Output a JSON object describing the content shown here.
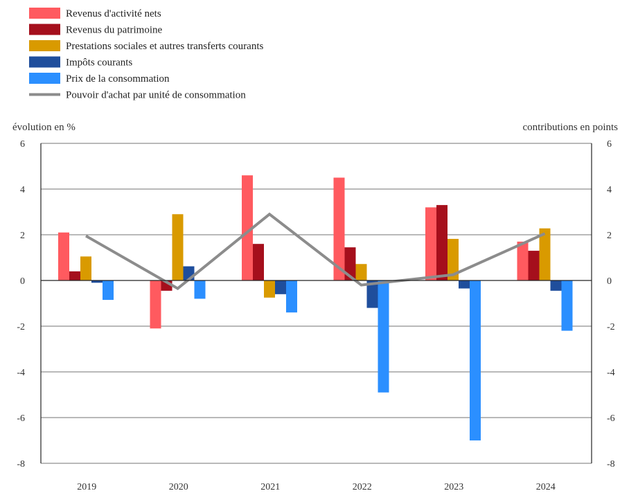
{
  "chart_data": {
    "type": "bar",
    "title": "",
    "ylabel_left": "évolution en %",
    "ylabel_right": "contributions en points",
    "categories": [
      "2019",
      "2020",
      "2021",
      "2022",
      "2023",
      "2024"
    ],
    "ylim": [
      -8,
      6
    ],
    "yticks": [
      6,
      4,
      2,
      0,
      -2,
      -4,
      -6,
      -8
    ],
    "grid": true,
    "legend_position": "top-left",
    "series": [
      {
        "name": "Revenus d'activité nets",
        "type": "bar",
        "color": "#ff5a5f",
        "values": [
          2.1,
          -2.1,
          4.6,
          4.5,
          3.2,
          1.7
        ]
      },
      {
        "name": "Revenus du patrimoine",
        "type": "bar",
        "color": "#a50f1c",
        "values": [
          0.4,
          -0.45,
          1.6,
          1.45,
          3.3,
          1.3
        ]
      },
      {
        "name": "Prestations sociales et autres transferts courants",
        "type": "bar",
        "color": "#d99a00",
        "values": [
          1.05,
          2.9,
          -0.75,
          0.72,
          1.82,
          2.28
        ]
      },
      {
        "name": "Impôts courants",
        "type": "bar",
        "color": "#1f4e9c",
        "values": [
          -0.1,
          0.62,
          -0.6,
          -1.2,
          -0.35,
          -0.45
        ]
      },
      {
        "name": "Prix de la consommation",
        "type": "bar",
        "color": "#2b8fff",
        "values": [
          -0.85,
          -0.8,
          -1.4,
          -4.9,
          -7.0,
          -2.2
        ]
      },
      {
        "name": "Pouvoir d'achat par unité de consommation",
        "type": "line",
        "color": "#8c8c8c",
        "values": [
          1.95,
          -0.35,
          2.9,
          -0.2,
          0.25,
          2.05
        ]
      }
    ]
  }
}
